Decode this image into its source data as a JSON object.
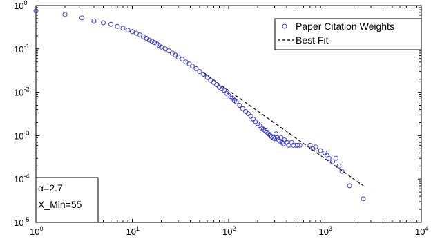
{
  "chart_data": {
    "type": "scatter",
    "x_scale": "log",
    "y_scale": "log",
    "xlim": [
      1,
      10000
    ],
    "ylim": [
      1e-05,
      1
    ],
    "grid": false,
    "legend_position": "top-right",
    "x_ticks": [
      {
        "base": "10",
        "exp": "0",
        "value": 1
      },
      {
        "base": "10",
        "exp": "1",
        "value": 10
      },
      {
        "base": "10",
        "exp": "2",
        "value": 100
      },
      {
        "base": "10",
        "exp": "3",
        "value": 1000
      },
      {
        "base": "10",
        "exp": "4",
        "value": 10000
      }
    ],
    "y_ticks": [
      {
        "base": "10",
        "exp": "0",
        "value": 1
      },
      {
        "base": "10",
        "exp": "-1",
        "value": 0.1
      },
      {
        "base": "10",
        "exp": "-2",
        "value": 0.01
      },
      {
        "base": "10",
        "exp": "-3",
        "value": 0.001
      },
      {
        "base": "10",
        "exp": "-4",
        "value": 0.0001
      },
      {
        "base": "10",
        "exp": "-5",
        "value": 1e-05
      }
    ],
    "series": [
      {
        "name": "Paper Citation Weights",
        "style": "circle-markers",
        "color": "#3a3ad8",
        "x": [
          1,
          2,
          3,
          4,
          5,
          6,
          7,
          8,
          9,
          10,
          11,
          12,
          13,
          14,
          15,
          16,
          17,
          18,
          19,
          20,
          22,
          24,
          26,
          28,
          30,
          33,
          36,
          39,
          42,
          46,
          50,
          55,
          60,
          65,
          70,
          75,
          80,
          85,
          90,
          95,
          100,
          105,
          110,
          115,
          120,
          130,
          140,
          150,
          160,
          170,
          180,
          190,
          200,
          210,
          220,
          230,
          240,
          250,
          260,
          270,
          280,
          290,
          300,
          310,
          320,
          330,
          340,
          350,
          360,
          370,
          380,
          400,
          420,
          450,
          470,
          500,
          520,
          550,
          700,
          750,
          800,
          900,
          1000,
          1050,
          1100,
          1200,
          1300,
          1400,
          1500,
          1800,
          2500
        ],
        "y": [
          0.75,
          0.62,
          0.52,
          0.44,
          0.4,
          0.37,
          0.33,
          0.3,
          0.27,
          0.25,
          0.23,
          0.21,
          0.19,
          0.175,
          0.16,
          0.15,
          0.14,
          0.13,
          0.12,
          0.11,
          0.1,
          0.09,
          0.08,
          0.072,
          0.065,
          0.058,
          0.05,
          0.045,
          0.04,
          0.035,
          0.03,
          0.026,
          0.022,
          0.019,
          0.017,
          0.015,
          0.013,
          0.012,
          0.011,
          0.0095,
          0.0085,
          0.0078,
          0.0072,
          0.0065,
          0.006,
          0.005,
          0.0042,
          0.0036,
          0.0032,
          0.0028,
          0.0024,
          0.0021,
          0.0019,
          0.0017,
          0.0015,
          0.0014,
          0.0013,
          0.0012,
          0.0011,
          0.001,
          0.00095,
          0.0009,
          0.00085,
          0.0011,
          0.0009,
          0.0008,
          0.00075,
          0.0009,
          0.0007,
          0.00065,
          0.0008,
          0.0007,
          0.0006,
          0.0007,
          0.0006,
          0.0006,
          0.0006,
          0.0006,
          0.0006,
          0.0005,
          0.00055,
          0.00045,
          0.0004,
          0.00035,
          0.0003,
          0.00025,
          0.0003,
          0.0002,
          0.00015,
          7e-05,
          3.5e-05
        ]
      },
      {
        "name": "Best Fit",
        "style": "dashed-line",
        "color": "#000000",
        "x": [
          55,
          2500
        ],
        "y": [
          0.028,
          7e-05
        ]
      }
    ],
    "annotations": [
      "α=2.7",
      "X_Min=55"
    ]
  }
}
